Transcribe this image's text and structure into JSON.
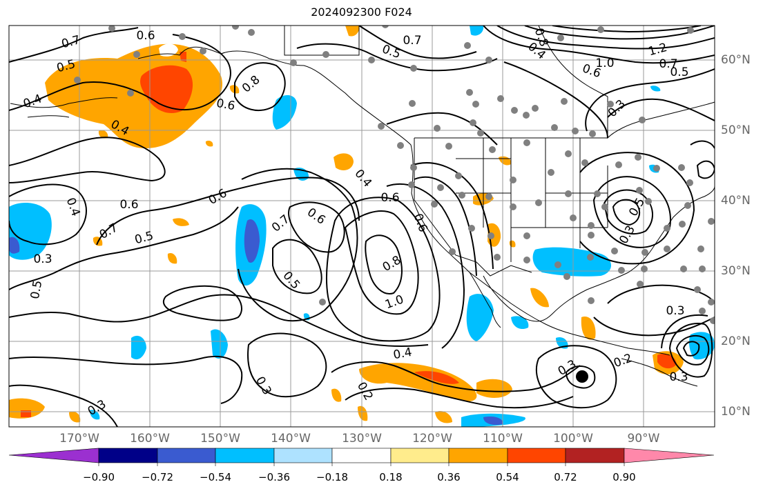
{
  "title": "2024092300 F024",
  "lon_labels": [
    "170°W",
    "160°W",
    "150°W",
    "140°W",
    "130°W",
    "120°W",
    "110°W",
    "100°W",
    "90°W"
  ],
  "lat_labels": [
    "60°N",
    "50°N",
    "40°N",
    "30°N",
    "20°N",
    "10°N"
  ],
  "colorbar": {
    "colors": [
      "#9b30d0",
      "#000088",
      "#3a5bd0",
      "#00bfff",
      "#aee2ff",
      "#ffffff",
      "#ffec8c",
      "#ffa500",
      "#ff4500",
      "#b22222",
      "#ff88aa"
    ],
    "tick_labels": [
      "−0.90",
      "−0.72",
      "−0.54",
      "−0.36",
      "−0.18",
      "0.18",
      "0.36",
      "0.54",
      "0.72",
      "0.90"
    ]
  },
  "contour_labels": [
    "0.7",
    "0.6",
    "0.5",
    "0.4",
    "0.8",
    "0.6",
    "0.4",
    "0.6",
    "0.5",
    "0.7",
    "0.4",
    "0.5",
    "0.3",
    "0.6",
    "0.7",
    "0.6",
    "0.6",
    "0.5",
    "0.4",
    "0.6",
    "0.8",
    "1.0",
    "0.7",
    "0.5",
    "0.8",
    "0.4",
    "0.6",
    "1.2",
    "1.0",
    "0.7",
    "0.5",
    "0.3",
    "0.3",
    "0.4",
    "0.2",
    "0.3",
    "0.2",
    "0.3",
    "0.3",
    "0.3",
    "0.3",
    "0.5"
  ],
  "colors": {
    "grid": "#999999",
    "station": "#808080",
    "contour": "#000000"
  }
}
